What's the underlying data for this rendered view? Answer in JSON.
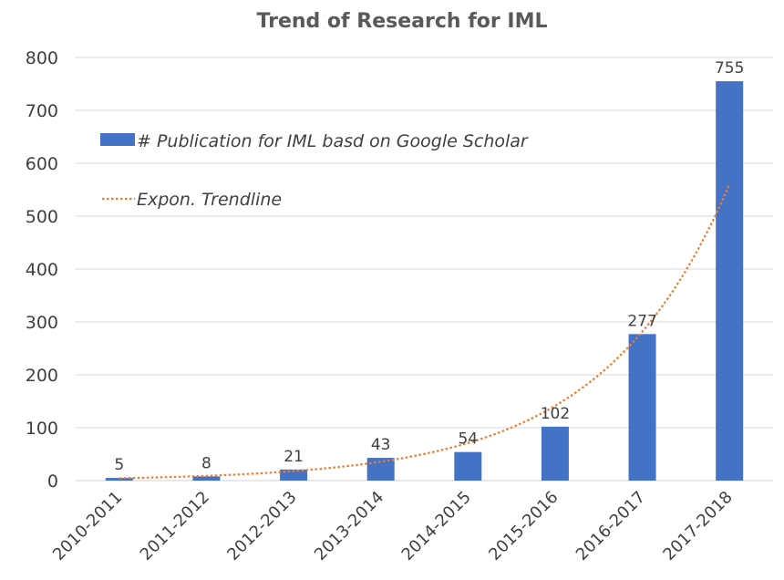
{
  "chart_data": {
    "type": "bar",
    "title": "Trend of Research for IML",
    "categories": [
      "2010-2011",
      "2011-2012",
      "2012-2013",
      "2013-2014",
      "2014-2015",
      "2015-2016",
      "2016-2017",
      "2017-2018"
    ],
    "series": [
      {
        "name": "# Publication for IML basd on Google Scholar",
        "values": [
          5,
          8,
          21,
          43,
          54,
          102,
          277,
          755
        ],
        "color": "#4472c4"
      }
    ],
    "trendline": {
      "name": "Expon. Trendline",
      "kind": "exponential",
      "color": "#ed7d31"
    },
    "data_labels": [
      "5",
      "8",
      "21",
      "43",
      "54",
      "102",
      "277",
      "755"
    ],
    "y_ticks": [
      "0",
      "100",
      "200",
      "300",
      "400",
      "500",
      "600",
      "700",
      "800"
    ],
    "ylim": [
      0,
      800
    ],
    "grid": true,
    "legend_position": "top-left"
  }
}
